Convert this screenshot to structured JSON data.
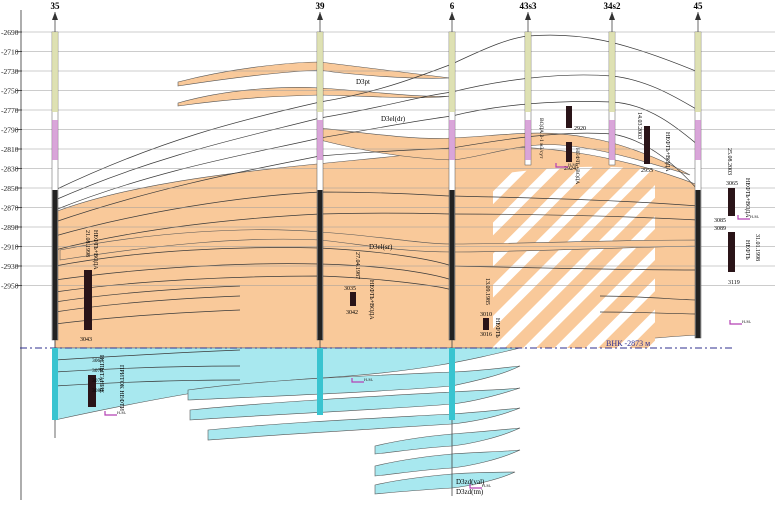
{
  "wells": [
    {
      "label": "35",
      "log_labels": [
        "21.08.1998",
        "НЕФТЬ+ВОДА"
      ],
      "depths": [
        "3043"
      ],
      "test_labels": [
        "ИСПЫТАНИЕ",
        "ПРИТОК НЕФТИ"
      ],
      "test_depths": [
        "3063",
        "3070",
        "3075",
        "3080"
      ]
    },
    {
      "label": "39",
      "log_labels": [
        "27.04.1987",
        "НЕФТЬ+ВОДА"
      ],
      "depths": [
        "3035",
        "3042"
      ]
    },
    {
      "label": "6",
      "log_labels": [
        "13.09.1985",
        "НЕФТЬ"
      ],
      "depths": [
        "3010",
        "3016"
      ]
    },
    {
      "label": "43s3",
      "log_labels": [
        "ВОДА 3-1 м3/сут",
        "НЕФТЬ+ВОДА"
      ],
      "depths": [
        "2920",
        "2924"
      ]
    },
    {
      "label": "34s2",
      "log_labels": [
        "14.03.2003",
        "НЕФТЬ+ВОДА"
      ],
      "depths": [
        "2955"
      ]
    },
    {
      "label": "45",
      "log_labels": [
        "25.08.2003",
        "НЕФТЬ+ВОДА",
        "31.01.1998",
        "НЕФТЬ"
      ],
      "depths": [
        "3065",
        "3085",
        "3089",
        "3119"
      ]
    }
  ],
  "depth_ticks": [
    "-2690",
    "-2710",
    "-2730",
    "-2750",
    "-2770",
    "-2790",
    "-2810",
    "-2830",
    "-2850",
    "-2870",
    "-2890",
    "-2910",
    "-2930",
    "-2950"
  ],
  "horizon_labels": [
    "D3pt",
    "D3el(dr)",
    "D3el(sr)",
    "D3zd(val)",
    "D3zd(tm)"
  ],
  "contact_label": "ВНК -2873 м",
  "marker_label": "н.м.",
  "colors": {
    "oil": "#f9c99a",
    "water": "#a8e8ef",
    "gridline": "#9a9a9a",
    "purple": "#b441b4",
    "contact": "#2f2f8f"
  }
}
